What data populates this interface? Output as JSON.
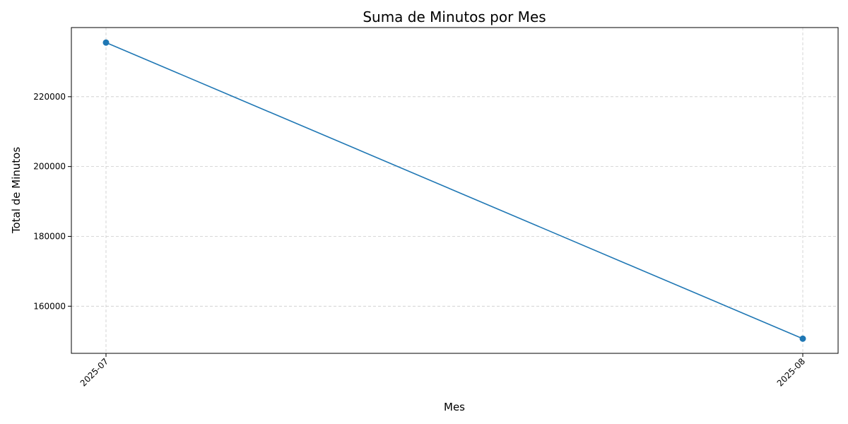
{
  "chart_data": {
    "type": "line",
    "title": "Suma de Minutos por Mes",
    "xlabel": "Mes",
    "ylabel": "Total de Minutos",
    "categories": [
      "2025-07",
      "2025-08"
    ],
    "series": [
      {
        "values": [
          235500,
          150700
        ],
        "color": "#1f77b4",
        "marker": "circle"
      }
    ],
    "ylim": [
      146500,
      239800
    ],
    "yticks": [
      160000,
      180000,
      200000,
      220000
    ],
    "ytick_labels": [
      "160000",
      "180000",
      "200000",
      "220000"
    ],
    "grid": true,
    "grid_color": "#cccccc",
    "x_tick_rotation": "45-degrees"
  }
}
